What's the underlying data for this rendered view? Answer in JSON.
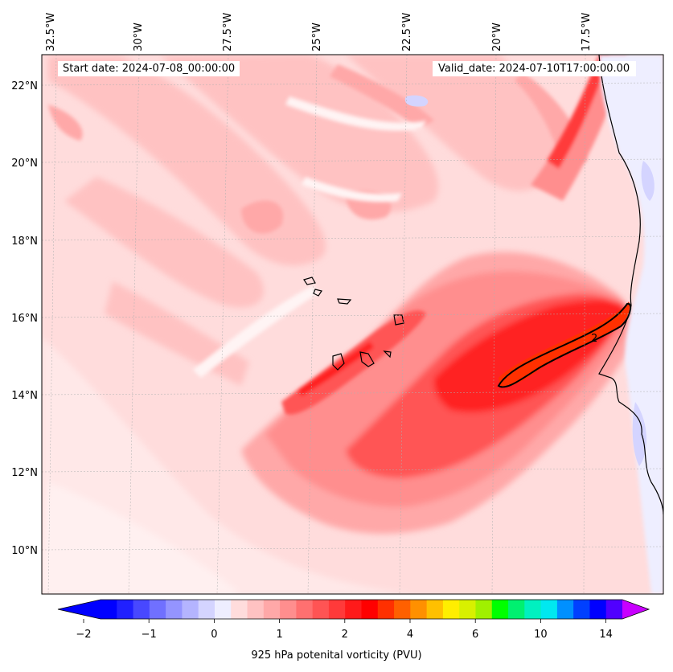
{
  "map": {
    "start_date": "Start date: 2024-07-08_00:00:00",
    "valid_date": "Valid_date: 2024-07-10T17:00:00.00",
    "lon_labels": [
      "32.5°W",
      "30°W",
      "27.5°W",
      "25°W",
      "22.5°W",
      "20°W",
      "17.5°W"
    ],
    "lat_labels": [
      "22°N",
      "20°N",
      "18°N",
      "16°N",
      "14°N",
      "12°N",
      "10°N"
    ],
    "contour_label": "2",
    "colors": {
      "background": "#ffdcdc",
      "coast": "#000000",
      "ocean_east": "#eeeeff"
    }
  },
  "colorbar": {
    "label": "925 hPa potenital vorticity (PVU)",
    "ticks": [
      "−2",
      "−1",
      "0",
      "1",
      "2",
      "4",
      "6",
      "10",
      "14"
    ],
    "colors": [
      "#0000ff",
      "#2020ff",
      "#4848ff",
      "#7070ff",
      "#9494ff",
      "#b4b4ff",
      "#d4d4ff",
      "#eeeeff",
      "#ffdcdc",
      "#ffc2c2",
      "#ffa8a8",
      "#ff8e8e",
      "#ff7070",
      "#ff5454",
      "#ff3a3a",
      "#ff1a1a",
      "#ff0000",
      "#ff3000",
      "#ff6000",
      "#ff9000",
      "#ffc000",
      "#ffee00",
      "#d8f000",
      "#a0f000",
      "#00ff00",
      "#00f070",
      "#00f0c0",
      "#00e8f0",
      "#0090ff",
      "#0040ff",
      "#0000ff",
      "#5000ff"
    ],
    "under_color": "#0000ff",
    "over_color": "#c800ff"
  }
}
